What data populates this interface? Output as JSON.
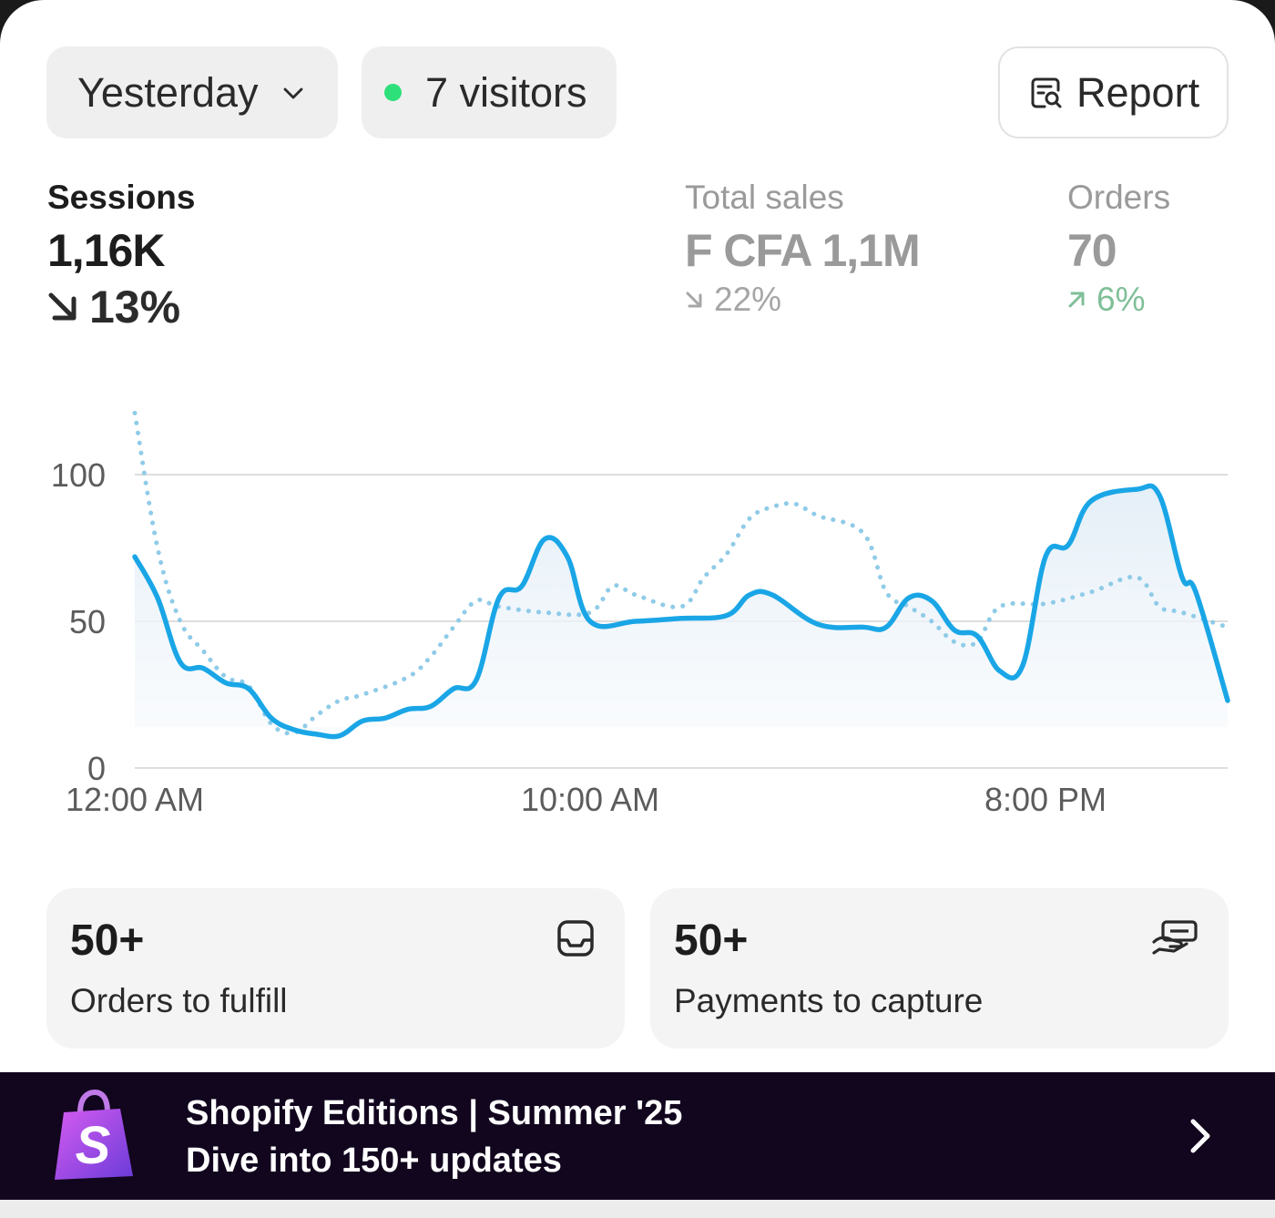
{
  "header": {
    "date_filter": "Yesterday",
    "visitors": "7 visitors",
    "report_label": "Report"
  },
  "metrics": {
    "sessions": {
      "label": "Sessions",
      "value": "1,16K",
      "delta": "13%",
      "direction": "down"
    },
    "total_sales": {
      "label": "Total sales",
      "value": "F CFA 1,1M",
      "delta": "22%",
      "direction": "down"
    },
    "orders": {
      "label": "Orders",
      "value": "70",
      "delta": "6%",
      "direction": "up"
    }
  },
  "chart_data": {
    "type": "line",
    "x_tick_labels": [
      "12:00 AM",
      "10:00 AM",
      "8:00 PM"
    ],
    "y_ticks": [
      0,
      50,
      100
    ],
    "ylim": [
      0,
      120
    ],
    "grid": true,
    "colors": {
      "current": "#1aa6e6",
      "comparison": "#8fcbe8"
    },
    "series": [
      {
        "style": "solid",
        "points": [
          [
            0,
            72
          ],
          [
            0.5,
            58
          ],
          [
            1,
            36
          ],
          [
            1.5,
            34
          ],
          [
            2,
            29
          ],
          [
            2.5,
            27
          ],
          [
            3,
            17
          ],
          [
            3.5,
            13
          ],
          [
            4,
            11.5
          ],
          [
            4.5,
            11
          ],
          [
            5,
            16
          ],
          [
            5.5,
            17
          ],
          [
            6,
            20
          ],
          [
            6.5,
            21
          ],
          [
            7,
            27
          ],
          [
            7.5,
            30
          ],
          [
            8,
            58
          ],
          [
            8.5,
            62
          ],
          [
            9,
            78
          ],
          [
            9.5,
            72
          ],
          [
            10,
            50
          ],
          [
            11,
            50
          ],
          [
            12,
            51
          ],
          [
            13,
            52
          ],
          [
            13.5,
            59
          ],
          [
            14,
            59
          ],
          [
            15,
            49
          ],
          [
            16,
            48
          ],
          [
            16.5,
            48
          ],
          [
            17,
            58
          ],
          [
            17.5,
            57
          ],
          [
            18,
            47
          ],
          [
            18.5,
            45
          ],
          [
            19,
            33
          ],
          [
            19.5,
            35
          ],
          [
            20,
            72
          ],
          [
            20.5,
            76
          ],
          [
            21,
            91
          ],
          [
            22,
            95
          ],
          [
            22.5,
            93
          ],
          [
            23,
            65
          ],
          [
            23.3,
            60
          ],
          [
            24,
            23
          ]
        ]
      },
      {
        "style": "dotted",
        "points": [
          [
            0,
            121
          ],
          [
            0.5,
            75
          ],
          [
            1,
            50
          ],
          [
            1.5,
            40
          ],
          [
            2,
            31
          ],
          [
            2.5,
            28
          ],
          [
            3,
            15
          ],
          [
            3.5,
            12
          ],
          [
            4,
            18
          ],
          [
            4.5,
            23
          ],
          [
            5,
            25
          ],
          [
            6,
            31
          ],
          [
            6.5,
            38
          ],
          [
            7,
            48
          ],
          [
            7.5,
            57
          ],
          [
            8,
            55
          ],
          [
            9,
            53
          ],
          [
            10,
            53
          ],
          [
            10.5,
            62
          ],
          [
            11,
            59
          ],
          [
            12,
            55
          ],
          [
            12.5,
            65
          ],
          [
            13,
            73
          ],
          [
            13.5,
            85
          ],
          [
            14,
            89
          ],
          [
            14.5,
            90
          ],
          [
            15,
            86
          ],
          [
            16,
            80
          ],
          [
            16.5,
            60
          ],
          [
            17,
            55
          ],
          [
            17.5,
            50
          ],
          [
            18,
            43
          ],
          [
            18.5,
            43
          ],
          [
            19,
            55
          ],
          [
            20,
            56
          ],
          [
            21,
            60
          ],
          [
            22,
            65
          ],
          [
            22.5,
            55
          ],
          [
            23,
            53
          ],
          [
            24,
            48
          ]
        ]
      }
    ]
  },
  "tiles": [
    {
      "count": "50+",
      "label": "Orders to fulfill",
      "icon": "inbox-icon"
    },
    {
      "count": "50+",
      "label": "Payments to capture",
      "icon": "hand-cash-icon"
    }
  ],
  "banner": {
    "title": "Shopify Editions | Summer '25",
    "subtitle": "Dive into 150+ updates",
    "logo_letter": "S"
  }
}
